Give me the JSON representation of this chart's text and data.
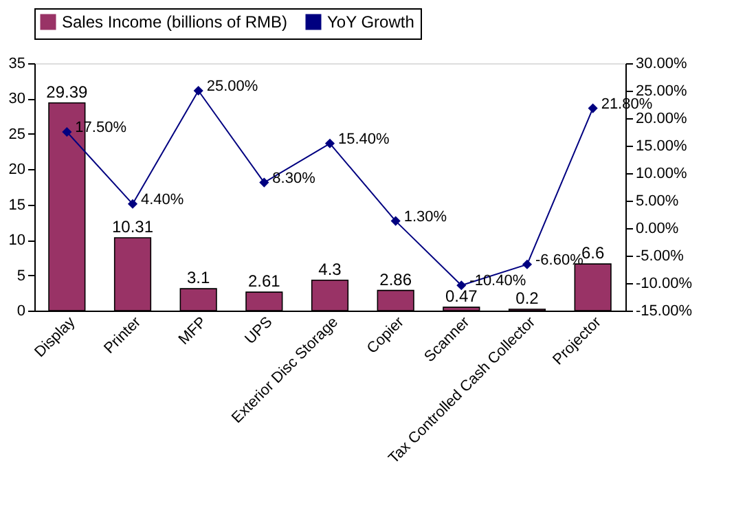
{
  "chart_data": {
    "type": "bar",
    "categories": [
      "Display",
      "Printer",
      "MFP",
      "UPS",
      "Exterior Disc Storage",
      "Copier",
      "Scanner",
      "Tax Controlled Cash Collector",
      "Projector"
    ],
    "series": [
      {
        "name": "Sales Income (billions of RMB)",
        "color": "#993366",
        "values": [
          29.39,
          10.31,
          3.1,
          2.61,
          4.3,
          2.86,
          0.47,
          0.2,
          6.6
        ],
        "value_labels": [
          "29.39",
          "10.31",
          "3.1",
          "2.61",
          "4.3",
          "2.86",
          "0.47",
          "0.2",
          "6.6"
        ]
      },
      {
        "name": "YoY Growth",
        "type": "line",
        "axis": "y2",
        "color": "#000080",
        "marker": "diamond",
        "values": [
          17.5,
          4.4,
          25.0,
          8.3,
          15.4,
          1.3,
          -10.4,
          -6.6,
          21.8
        ],
        "value_labels": [
          "17.50%",
          "4.40%",
          "25.00%",
          "8.30%",
          "15.40%",
          "1.30%",
          "-10.40%",
          "-6.60%",
          "21.80%"
        ]
      }
    ],
    "ylim": [
      0,
      35
    ],
    "yticks": [
      0,
      5,
      10,
      15,
      20,
      25,
      30,
      35
    ],
    "y2lim": [
      -15,
      30
    ],
    "y2ticks": [
      {
        "value": -15,
        "label": "-15.00%"
      },
      {
        "value": -10,
        "label": "-10.00%"
      },
      {
        "value": -5,
        "label": "-5.00%"
      },
      {
        "value": 0,
        "label": "0.00%"
      },
      {
        "value": 5,
        "label": "5.00%"
      },
      {
        "value": 10,
        "label": "10.00%"
      },
      {
        "value": 15,
        "label": "15.00%"
      },
      {
        "value": 20,
        "label": "20.00%"
      },
      {
        "value": 25,
        "label": "25.00%"
      },
      {
        "value": 30,
        "label": "30.00%"
      }
    ],
    "grid": false,
    "legend": "top"
  }
}
